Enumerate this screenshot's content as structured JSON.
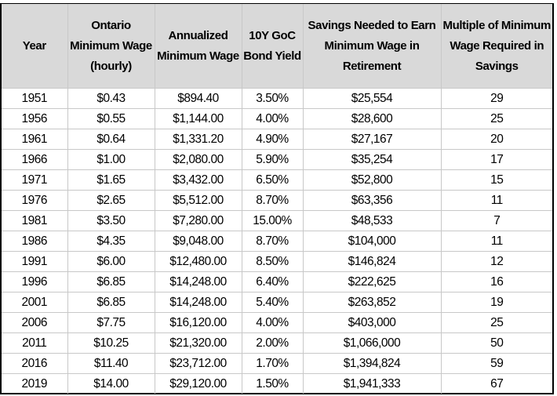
{
  "table": {
    "headers": [
      "Year",
      "Ontario Minimum Wage (hourly)",
      "Annualized Minimum Wage",
      "10Y GoC Bond Yield",
      "Savings Needed to Earn Minimum Wage in Retirement",
      "Multiple of Minimum Wage Required in Savings"
    ],
    "rows": [
      [
        "1951",
        "$0.43",
        "$894.40",
        "3.50%",
        "$25,554",
        "29"
      ],
      [
        "1956",
        "$0.55",
        "$1,144.00",
        "4.00%",
        "$28,600",
        "25"
      ],
      [
        "1961",
        "$0.64",
        "$1,331.20",
        "4.90%",
        "$27,167",
        "20"
      ],
      [
        "1966",
        "$1.00",
        "$2,080.00",
        "5.90%",
        "$35,254",
        "17"
      ],
      [
        "1971",
        "$1.65",
        "$3,432.00",
        "6.50%",
        "$52,800",
        "15"
      ],
      [
        "1976",
        "$2.65",
        "$5,512.00",
        "8.70%",
        "$63,356",
        "11"
      ],
      [
        "1981",
        "$3.50",
        "$7,280.00",
        "15.00%",
        "$48,533",
        "7"
      ],
      [
        "1986",
        "$4.35",
        "$9,048.00",
        "8.70%",
        "$104,000",
        "11"
      ],
      [
        "1991",
        "$6.00",
        "$12,480.00",
        "8.50%",
        "$146,824",
        "12"
      ],
      [
        "1996",
        "$6.85",
        "$14,248.00",
        "6.40%",
        "$222,625",
        "16"
      ],
      [
        "2001",
        "$6.85",
        "$14,248.00",
        "5.40%",
        "$263,852",
        "19"
      ],
      [
        "2006",
        "$7.75",
        "$16,120.00",
        "4.00%",
        "$403,000",
        "25"
      ],
      [
        "2011",
        "$10.25",
        "$21,320.00",
        "2.00%",
        "$1,066,000",
        "50"
      ],
      [
        "2016",
        "$11.40",
        "$23,712.00",
        "1.70%",
        "$1,394,824",
        "59"
      ],
      [
        "2019",
        "$14.00",
        "$29,120.00",
        "1.50%",
        "$1,941,333",
        "67"
      ]
    ]
  }
}
